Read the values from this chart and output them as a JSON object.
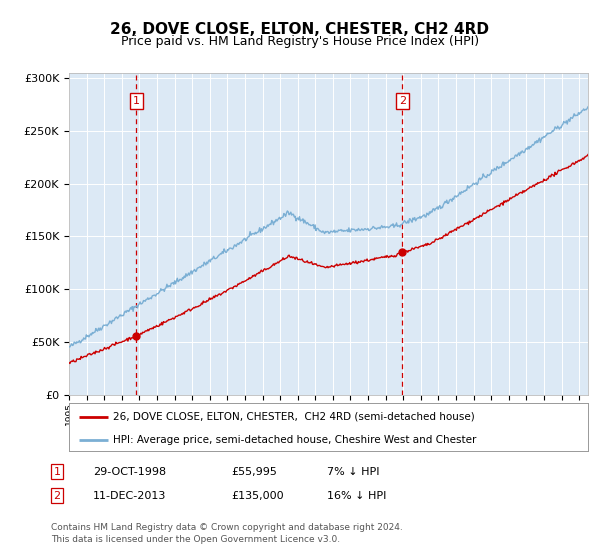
{
  "title": "26, DOVE CLOSE, ELTON, CHESTER, CH2 4RD",
  "subtitle": "Price paid vs. HM Land Registry's House Price Index (HPI)",
  "legend_line1": "26, DOVE CLOSE, ELTON, CHESTER,  CH2 4RD (semi-detached house)",
  "legend_line2": "HPI: Average price, semi-detached house, Cheshire West and Chester",
  "footnote": "Contains HM Land Registry data © Crown copyright and database right 2024.\nThis data is licensed under the Open Government Licence v3.0.",
  "sale1_date": "29-OCT-1998",
  "sale1_price": "£55,995",
  "sale1_hpi": "7% ↓ HPI",
  "sale1_year": 1998.83,
  "sale1_value": 55995,
  "sale2_date": "11-DEC-2013",
  "sale2_price": "£135,000",
  "sale2_hpi": "16% ↓ HPI",
  "sale2_year": 2013.95,
  "sale2_value": 135000,
  "ylim": [
    0,
    305000
  ],
  "xlim_start": 1995.0,
  "xlim_end": 2024.5,
  "bg_color": "#dce9f5",
  "red_color": "#cc0000",
  "blue_color": "#7bafd4",
  "vline_color": "#cc0000",
  "grid_color": "#ffffff",
  "box_color": "#cc0000",
  "title_fontsize": 11,
  "subtitle_fontsize": 9
}
